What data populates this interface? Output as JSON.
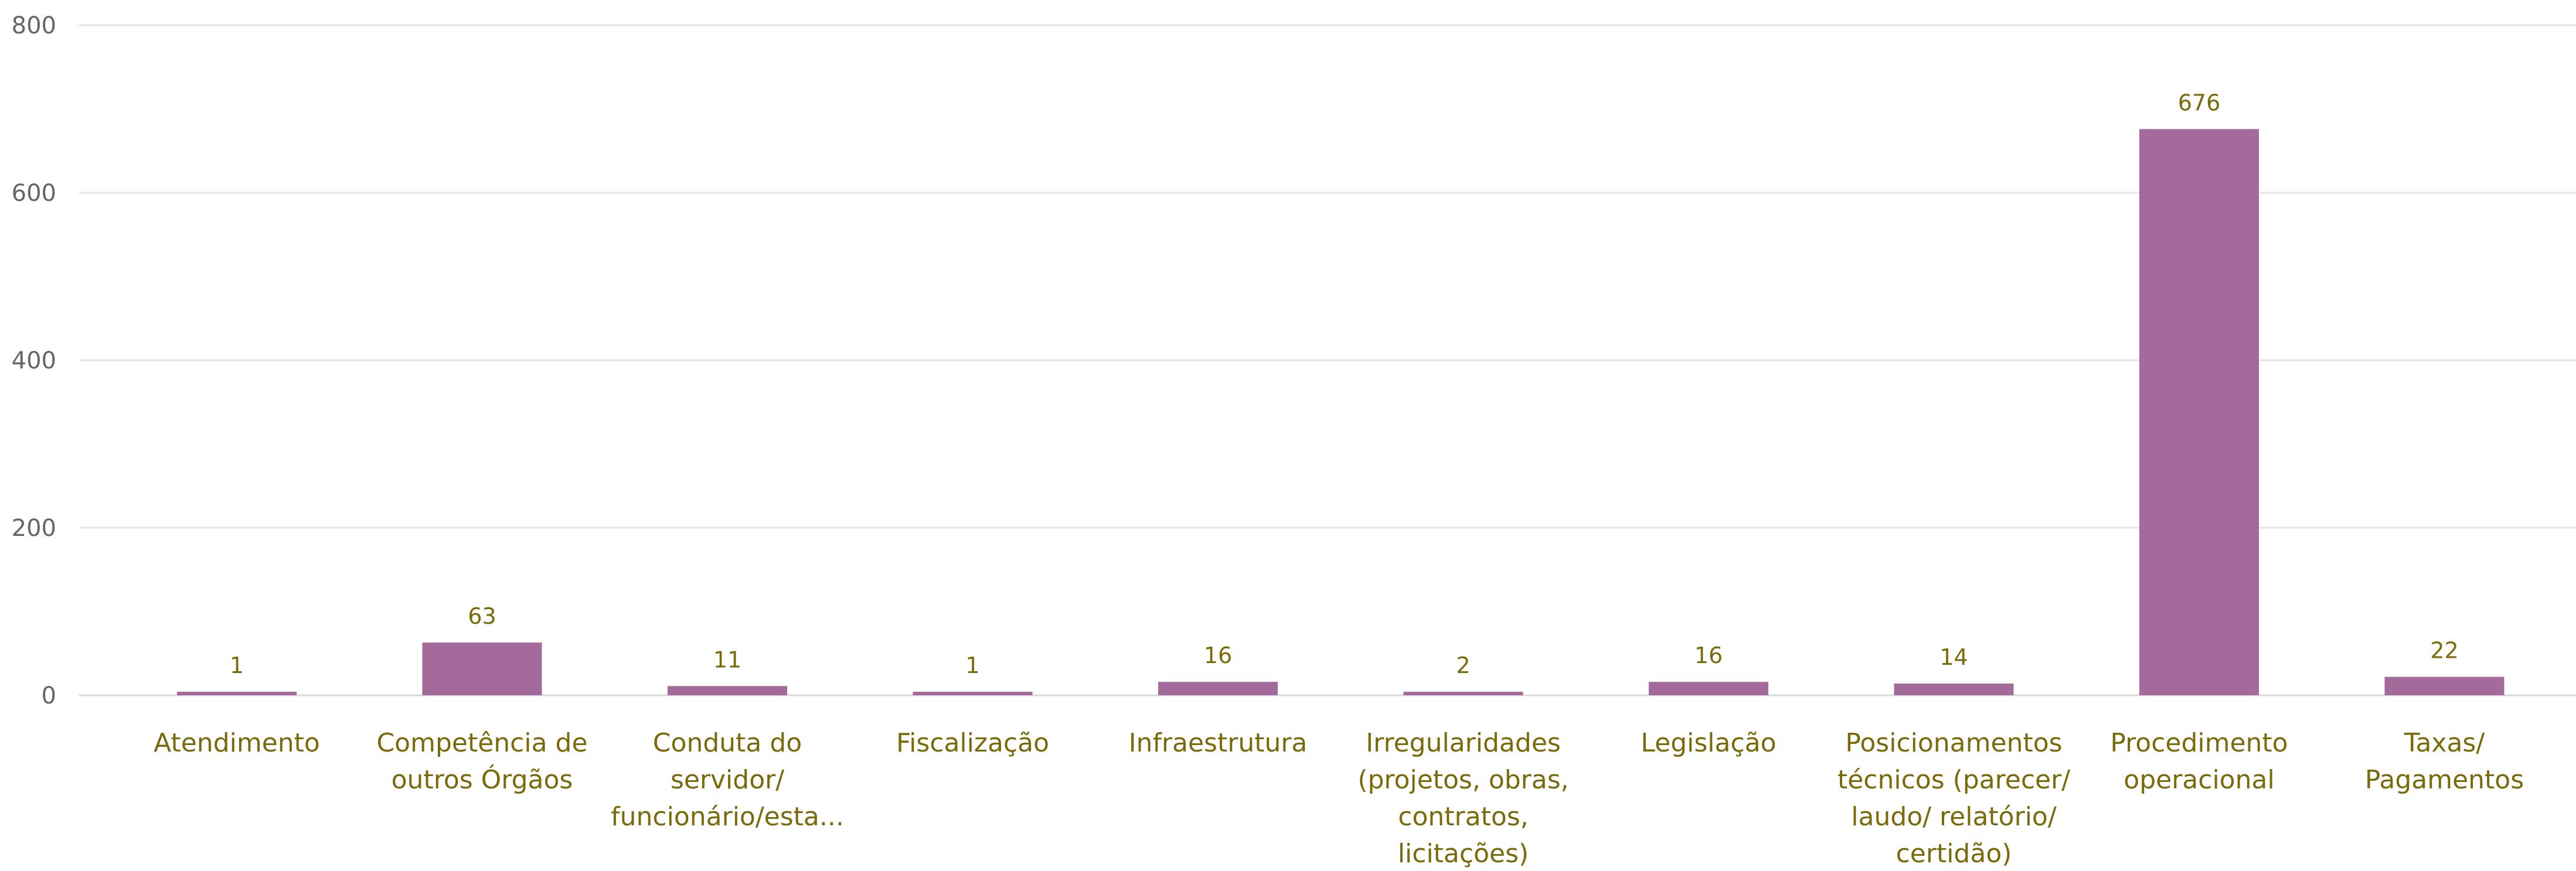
{
  "chart_data": {
    "type": "bar",
    "categories": [
      [
        "Atendimento"
      ],
      [
        "Competência de",
        "outros Órgãos"
      ],
      [
        "Conduta do",
        "servidor/",
        "funcionário/esta..."
      ],
      [
        "Fiscalização"
      ],
      [
        "Infraestrutura"
      ],
      [
        "Irregularidades",
        "(projetos, obras,",
        "contratos,",
        "licitações)"
      ],
      [
        "Legislação"
      ],
      [
        "Posicionamentos",
        "técnicos (parecer/",
        "laudo/ relatório/",
        "certidão)"
      ],
      [
        "Procedimento",
        "operacional"
      ],
      [
        "Taxas/",
        "Pagamentos"
      ]
    ],
    "values": [
      1,
      63,
      11,
      1,
      16,
      2,
      16,
      14,
      676,
      22
    ],
    "yticks": [
      "0",
      "200",
      "400",
      "600",
      "800"
    ],
    "ylim": [
      0,
      800
    ],
    "grid": true,
    "colors": {
      "bar": "#a56a9c",
      "label": "#7a6a0a",
      "tick": "#666666"
    }
  }
}
